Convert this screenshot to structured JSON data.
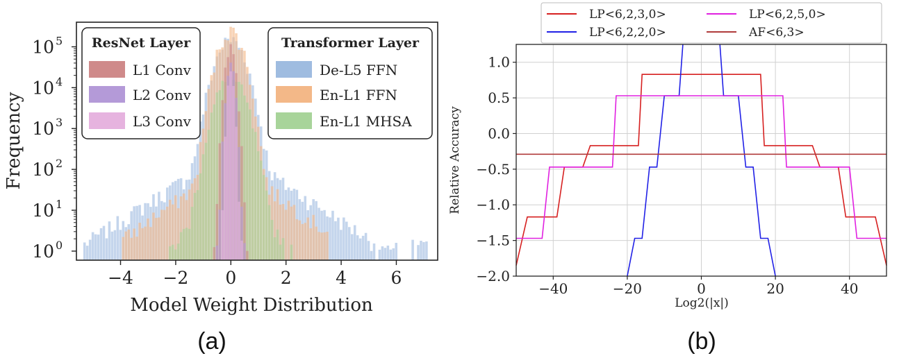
{
  "chart_data": [
    {
      "type": "histogram",
      "panel_label": "(a)",
      "xlabel": "Model Weight Distribution",
      "ylabel": "Frequency",
      "xlim": [
        -5.6,
        7.5
      ],
      "y_scale": "log",
      "ylim": [
        0.6,
        400000
      ],
      "x_ticks": [
        -4,
        -2,
        0,
        2,
        4,
        6
      ],
      "x_tick_labels": [
        "−4",
        "−2",
        "0",
        "2",
        "4",
        "6"
      ],
      "y_ticks": [
        1,
        10,
        100,
        1000,
        10000,
        100000
      ],
      "y_tick_labels": [
        "10",
        "10",
        "10",
        "10",
        "10",
        "10"
      ],
      "y_tick_exponents": [
        "0",
        "1",
        "2",
        "3",
        "4",
        "5"
      ],
      "legends": [
        {
          "title": "ResNet Layer",
          "placement": "top-left",
          "entries": [
            "L1 Conv",
            "L2 Conv",
            "L3 Conv"
          ]
        },
        {
          "title": "Transformer Layer",
          "placement": "top-right",
          "entries": [
            "De-L5 FFN",
            "En-L1 FFN",
            "En-L1 MHSA"
          ]
        }
      ],
      "series": [
        {
          "name": "De-L5 FFN",
          "color": "#9fbce0",
          "range": [
            -5.3,
            7.1
          ],
          "peak": 150000,
          "sigma": 0.35,
          "tail": 300,
          "tail_scale": 1.0
        },
        {
          "name": "En-L1 FFN",
          "color": "#f3b888",
          "range": [
            -3.9,
            3.5
          ],
          "peak": 250000,
          "sigma": 0.3,
          "tail": 150,
          "tail_scale": 0.9
        },
        {
          "name": "En-L1 MHSA",
          "color": "#a8d49a",
          "range": [
            -2.3,
            2.4
          ],
          "peak": 16000,
          "sigma": 0.35,
          "tail": 60,
          "tail_scale": 0.55
        },
        {
          "name": "L1 Conv",
          "color": "#cf8a8a",
          "range": [
            -0.6,
            0.6
          ],
          "peak": 90000,
          "sigma": 0.12,
          "tail": 0,
          "tail_scale": 0.2
        },
        {
          "name": "L2 Conv",
          "color": "#b49ad8",
          "range": [
            -0.5,
            0.5
          ],
          "peak": 30000,
          "sigma": 0.1,
          "tail": 0,
          "tail_scale": 0.2
        },
        {
          "name": "L3 Conv",
          "color": "#e6b3df",
          "range": [
            -0.4,
            0.4
          ],
          "peak": 20000,
          "sigma": 0.08,
          "tail": 0,
          "tail_scale": 0.2
        }
      ]
    },
    {
      "type": "line",
      "panel_label": "(b)",
      "xlabel": "Log2(|x|)",
      "ylabel": "Relative Accuracy",
      "xlim": [
        -50,
        50
      ],
      "ylim": [
        -2.0,
        1.25
      ],
      "grid": true,
      "legend_placement": "top",
      "x_ticks": [
        -40,
        -20,
        0,
        20,
        40
      ],
      "x_tick_labels": [
        "−40",
        "−20",
        "0",
        "20",
        "40"
      ],
      "y_ticks": [
        1.0,
        0.5,
        0.0,
        -0.5,
        -1.0,
        -1.5,
        -2.0
      ],
      "y_tick_labels": [
        "1.0",
        "0.5",
        "0.0",
        "−0.5",
        "−1.0",
        "−1.5",
        "−2.0"
      ],
      "series": [
        {
          "name": "LP<6,2,3,0>",
          "color": "#d62020",
          "steps": [
            [
              -50,
              -1.85
            ],
            [
              -47,
              -1.17
            ],
            [
              -39,
              -1.17
            ],
            [
              -37,
              -0.47
            ],
            [
              -32,
              -0.47
            ],
            [
              -30,
              -0.17
            ],
            [
              -17,
              -0.17
            ],
            [
              -16,
              0.83
            ],
            [
              16,
              0.83
            ],
            [
              17,
              -0.17
            ],
            [
              30,
              -0.17
            ],
            [
              32,
              -0.47
            ],
            [
              37,
              -0.47
            ],
            [
              39,
              -1.17
            ],
            [
              47,
              -1.17
            ],
            [
              50,
              -1.85
            ]
          ]
        },
        {
          "name": "LP<6,2,2,0>",
          "color": "#2020e6",
          "steps": [
            [
              -20,
              -2.0
            ],
            [
              -18,
              -1.47
            ],
            [
              -16,
              -1.47
            ],
            [
              -14,
              -0.47
            ],
            [
              -12,
              -0.47
            ],
            [
              -10,
              0.53
            ],
            [
              -6,
              0.53
            ],
            [
              -5,
              1.25
            ]
          ],
          "steps2": [
            [
              5,
              1.25
            ],
            [
              6,
              0.53
            ],
            [
              10,
              0.53
            ],
            [
              12,
              -0.47
            ],
            [
              14,
              -0.47
            ],
            [
              16,
              -1.47
            ],
            [
              18,
              -1.47
            ],
            [
              20,
              -2.0
            ]
          ]
        },
        {
          "name": "LP<6,2,5,0>",
          "color": "#e020e0",
          "steps": [
            [
              -50,
              -1.47
            ],
            [
              -43,
              -1.47
            ],
            [
              -41,
              -0.47
            ],
            [
              -24,
              -0.47
            ],
            [
              -23,
              0.53
            ],
            [
              22,
              0.53
            ],
            [
              23,
              -0.47
            ],
            [
              40,
              -0.47
            ],
            [
              42,
              -1.47
            ],
            [
              50,
              -1.47
            ]
          ]
        },
        {
          "name": "AF<6,3>",
          "color": "#b03a3a",
          "steps": [
            [
              -50,
              -0.29
            ],
            [
              50,
              -0.29
            ]
          ]
        }
      ]
    }
  ]
}
